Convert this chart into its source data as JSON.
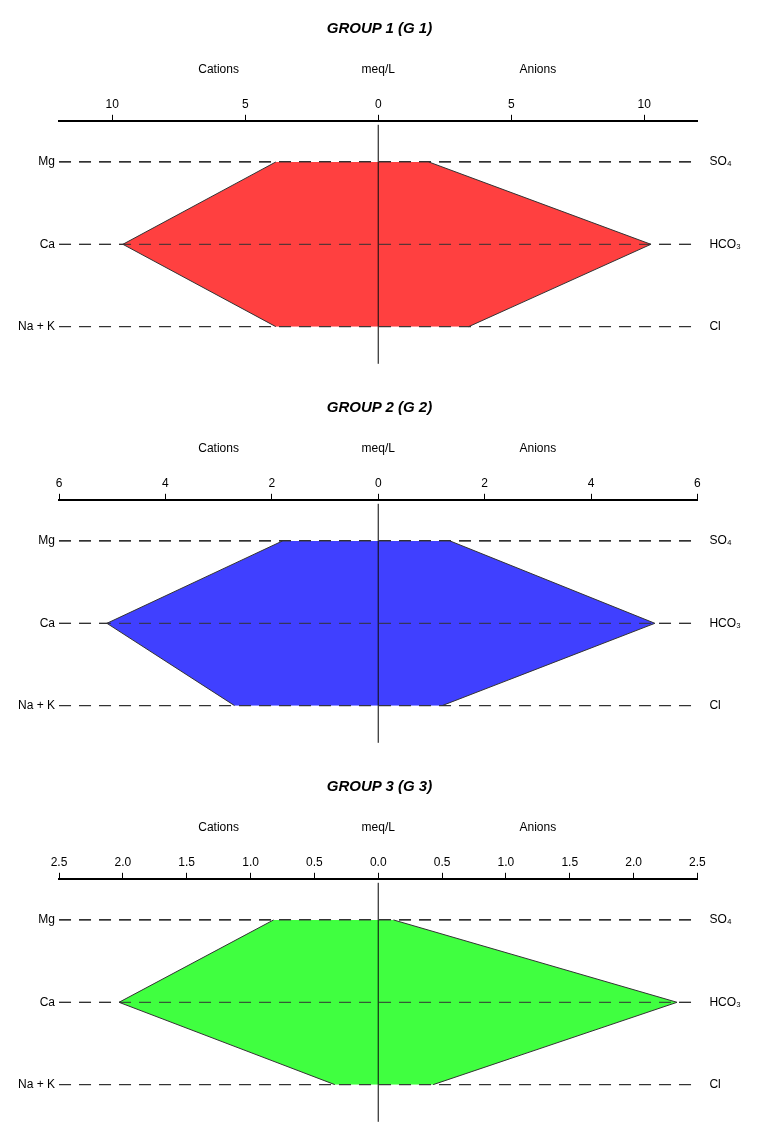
{
  "chart_data": [
    {
      "type": "area",
      "orientation": "horizontal",
      "title": "GROUP 1 (G 1)",
      "xlabel": "meq/L",
      "annotations": [
        "Cations",
        "Anions"
      ],
      "categories": [
        "Mg",
        "Ca",
        "Na + K"
      ],
      "y2_categories": [
        "SO₄",
        "HCO₃",
        "Cl"
      ],
      "xlim": [
        -12,
        12
      ],
      "xticks": [
        {
          "value": -10,
          "label": "10"
        },
        {
          "value": -5,
          "label": "5"
        },
        0,
        5,
        10
      ],
      "grid": "y",
      "marker": "none",
      "ref_lines": [
        {
          "axis": "x",
          "value": 0
        }
      ],
      "series": [
        {
          "color": "#ff4040",
          "values": [
            -3.85,
            -9.6,
            -3.85
          ]
        },
        {
          "color": "#ff4040",
          "values": [
            1.9,
            10.25,
            3.4
          ]
        }
      ]
    },
    {
      "type": "area",
      "orientation": "horizontal",
      "title": "GROUP 2 (G 2)",
      "xlabel": "meq/L",
      "annotations": [
        "Cations",
        "Anions"
      ],
      "categories": [
        "Mg",
        "Ca",
        "Na + K"
      ],
      "y2_categories": [
        "SO₄",
        "HCO₃",
        "Cl"
      ],
      "xlim": [
        -6,
        6
      ],
      "xticks": [
        {
          "value": -6,
          "label": "6"
        },
        {
          "value": -4,
          "label": "4"
        },
        {
          "value": -2,
          "label": "2"
        },
        0,
        2,
        4,
        6
      ],
      "grid": "y",
      "marker": "none",
      "ref_lines": [
        {
          "axis": "x",
          "value": 0
        }
      ],
      "series": [
        {
          "color": "#4040ff",
          "values": [
            -1.8,
            -5.1,
            -2.7
          ]
        },
        {
          "color": "#4040ff",
          "values": [
            1.35,
            5.2,
            1.2
          ]
        }
      ]
    },
    {
      "type": "area",
      "orientation": "horizontal",
      "title": "GROUP 3 (G 3)",
      "xlabel": "meq/L",
      "annotations": [
        "Cations",
        "Anions"
      ],
      "categories": [
        "Mg",
        "Ca",
        "Na + K"
      ],
      "y2_categories": [
        "SO₄",
        "HCO₃",
        "Cl"
      ],
      "xlim": [
        -2.5,
        2.5
      ],
      "xticks": [
        {
          "value": -2.5,
          "label": "2.5"
        },
        {
          "value": -2,
          "label": "2.0"
        },
        {
          "value": -1.5,
          "label": "1.5"
        },
        {
          "value": -1,
          "label": "1.0"
        },
        {
          "value": -0.5,
          "label": "0.5"
        },
        {
          "value": 0,
          "label": "0.0"
        },
        {
          "value": 0.5,
          "label": "0.5"
        },
        {
          "value": 1,
          "label": "1.0"
        },
        {
          "value": 1.5,
          "label": "1.5"
        },
        {
          "value": 2,
          "label": "2.0"
        },
        {
          "value": 2.5,
          "label": "2.5"
        }
      ],
      "grid": "y",
      "marker": "none",
      "ref_lines": [
        {
          "axis": "x",
          "value": 0
        }
      ],
      "series": [
        {
          "color": "#40ff40",
          "values": [
            -0.82,
            -2.03,
            -0.34
          ]
        },
        {
          "color": "#40ff40",
          "values": [
            0.12,
            2.34,
            0.43
          ]
        }
      ]
    }
  ]
}
